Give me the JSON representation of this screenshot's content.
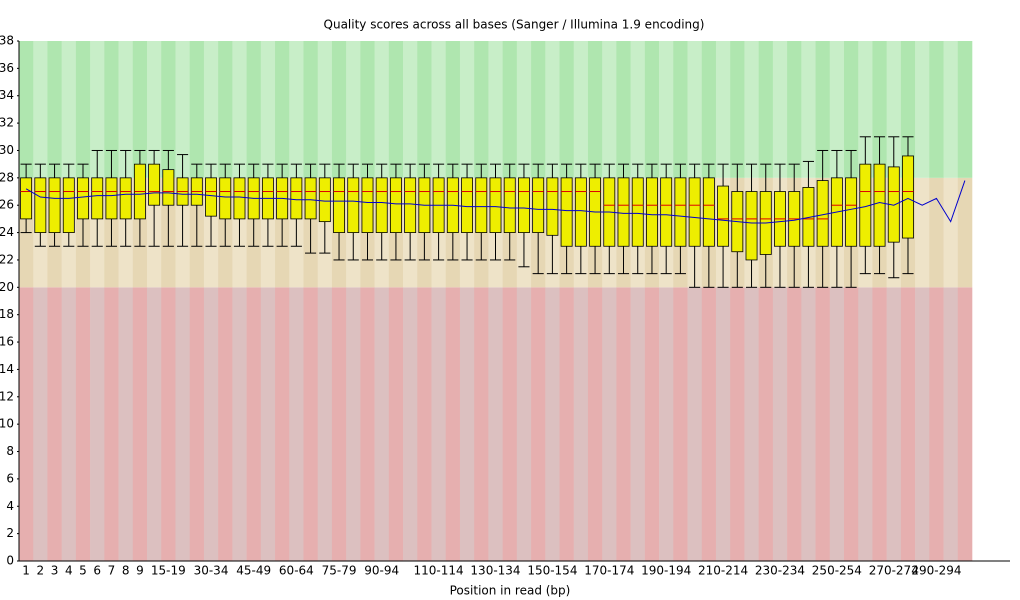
{
  "chart_data": {
    "type": "box",
    "title": "Quality scores across all bases (Sanger / Illumina 1.9 encoding)",
    "x_label": "Position in read (bp)",
    "categories": [
      "1",
      "2",
      "3",
      "4",
      "5",
      "6",
      "7",
      "8",
      "9",
      null,
      "15-19",
      null,
      null,
      "30-34",
      null,
      null,
      "45-49",
      null,
      null,
      "60-64",
      null,
      null,
      "75-79",
      null,
      null,
      "90-94",
      null,
      null,
      null,
      "110-114",
      null,
      null,
      null,
      "130-134",
      null,
      null,
      null,
      "150-154",
      null,
      null,
      null,
      "170-174",
      null,
      null,
      null,
      "190-194",
      null,
      null,
      null,
      "210-214",
      null,
      null,
      null,
      "230-234",
      null,
      null,
      null,
      "250-254",
      null,
      null,
      null,
      "270-274",
      null,
      null,
      "290-294",
      null,
      null
    ],
    "lower_whisker": [
      24,
      23,
      23,
      23,
      23,
      23,
      23,
      23,
      23,
      23,
      23,
      23,
      23,
      23,
      23,
      23,
      23,
      23,
      23,
      23,
      22.5,
      22.5,
      22,
      22,
      22,
      22,
      22,
      22,
      22,
      22,
      22,
      22,
      22,
      22,
      22,
      21.5,
      21,
      21,
      21,
      21,
      21,
      21,
      21,
      21,
      21,
      21,
      21,
      20,
      20,
      20,
      20,
      20,
      20,
      20,
      20,
      20,
      20,
      20,
      20,
      21,
      21,
      20.7,
      21,
      null,
      null,
      null,
      null
    ],
    "q1": [
      25,
      24,
      24,
      24,
      25,
      25,
      25,
      25,
      25,
      26,
      26,
      26,
      26,
      25.2,
      25,
      25,
      25,
      25,
      25,
      25,
      25,
      24.8,
      24,
      24,
      24,
      24,
      24,
      24,
      24,
      24,
      24,
      24,
      24,
      24,
      24,
      24,
      24,
      23.8,
      23,
      23,
      23,
      23,
      23,
      23,
      23,
      23,
      23,
      23,
      23,
      23,
      22.6,
      22,
      22.4,
      23,
      23,
      23,
      23,
      23,
      23,
      23,
      23,
      23.3,
      23.6,
      null,
      null,
      null,
      null
    ],
    "median": [
      27,
      27,
      27,
      27,
      27,
      27,
      27,
      27,
      27,
      27,
      27,
      27,
      27,
      27,
      27,
      27,
      27,
      27,
      27,
      27,
      27,
      27,
      27,
      27,
      27,
      27,
      27,
      27,
      27,
      27,
      27,
      27,
      27,
      27,
      27,
      27,
      27,
      27,
      27,
      27,
      27,
      26,
      26,
      26,
      26,
      26,
      26,
      26,
      26,
      25,
      25,
      25,
      25,
      25,
      25,
      25,
      25,
      26,
      26,
      27,
      27,
      27,
      27,
      null,
      null,
      null,
      null
    ],
    "q3": [
      28,
      28,
      28,
      28,
      28,
      28,
      28,
      28,
      29,
      29,
      28.6,
      28,
      28,
      28,
      28,
      28,
      28,
      28,
      28,
      28,
      28,
      28,
      28,
      28,
      28,
      28,
      28,
      28,
      28,
      28,
      28,
      28,
      28,
      28,
      28,
      28,
      28,
      28,
      28,
      28,
      28,
      28,
      28,
      28,
      28,
      28,
      28,
      28,
      28,
      27.4,
      27,
      27,
      27,
      27,
      27,
      27.3,
      27.8,
      28,
      28,
      29,
      29,
      28.8,
      29.6,
      null,
      null,
      null,
      null
    ],
    "upper_whisker": [
      29,
      29,
      29,
      29,
      29,
      30,
      30,
      30,
      30,
      30,
      30,
      29.7,
      29,
      29,
      29,
      29,
      29,
      29,
      29,
      29,
      29,
      29,
      29,
      29,
      29,
      29,
      29,
      29,
      29,
      29,
      29,
      29,
      29,
      29,
      29,
      29,
      29,
      29,
      29,
      29,
      29,
      29,
      29,
      29,
      29,
      29,
      29,
      29,
      29,
      29,
      29,
      29,
      29,
      29,
      29,
      29.2,
      30,
      30,
      30,
      31,
      31,
      31,
      31,
      null,
      null,
      null,
      null
    ],
    "mean": [
      27.2,
      26.6,
      26.5,
      26.5,
      26.6,
      26.7,
      26.7,
      26.8,
      26.8,
      26.9,
      26.9,
      26.8,
      26.8,
      26.7,
      26.6,
      26.6,
      26.5,
      26.5,
      26.5,
      26.4,
      26.4,
      26.3,
      26.3,
      26.3,
      26.2,
      26.2,
      26.1,
      26.1,
      26,
      26,
      26,
      25.9,
      25.9,
      25.9,
      25.8,
      25.8,
      25.7,
      25.7,
      25.6,
      25.6,
      25.5,
      25.5,
      25.4,
      25.4,
      25.3,
      25.3,
      25.2,
      25.1,
      25,
      24.9,
      24.8,
      24.7,
      24.7,
      24.8,
      24.9,
      25.1,
      25.3,
      25.5,
      25.7,
      25.9,
      26.2,
      26,
      26.5,
      26,
      26.5,
      24.8,
      27.8
    ],
    "box_color": "#eeee00",
    "median_color": "#dd0000",
    "mean_color": "#0000cc",
    "bands": [
      {
        "from": 0,
        "to": 20,
        "colors": [
          "#e6afaf",
          "#dcc0c0"
        ]
      },
      {
        "from": 20,
        "to": 28,
        "colors": [
          "#e6d7b4",
          "#eee3c8"
        ]
      },
      {
        "from": 28,
        "to": 38,
        "colors": [
          "#afe6af",
          "#c8eec8"
        ]
      }
    ],
    "ylim": [
      0,
      38
    ],
    "yticks": [
      0,
      2,
      4,
      6,
      8,
      10,
      12,
      14,
      16,
      18,
      20,
      22,
      24,
      26,
      28,
      30,
      32,
      34,
      36,
      38
    ]
  }
}
